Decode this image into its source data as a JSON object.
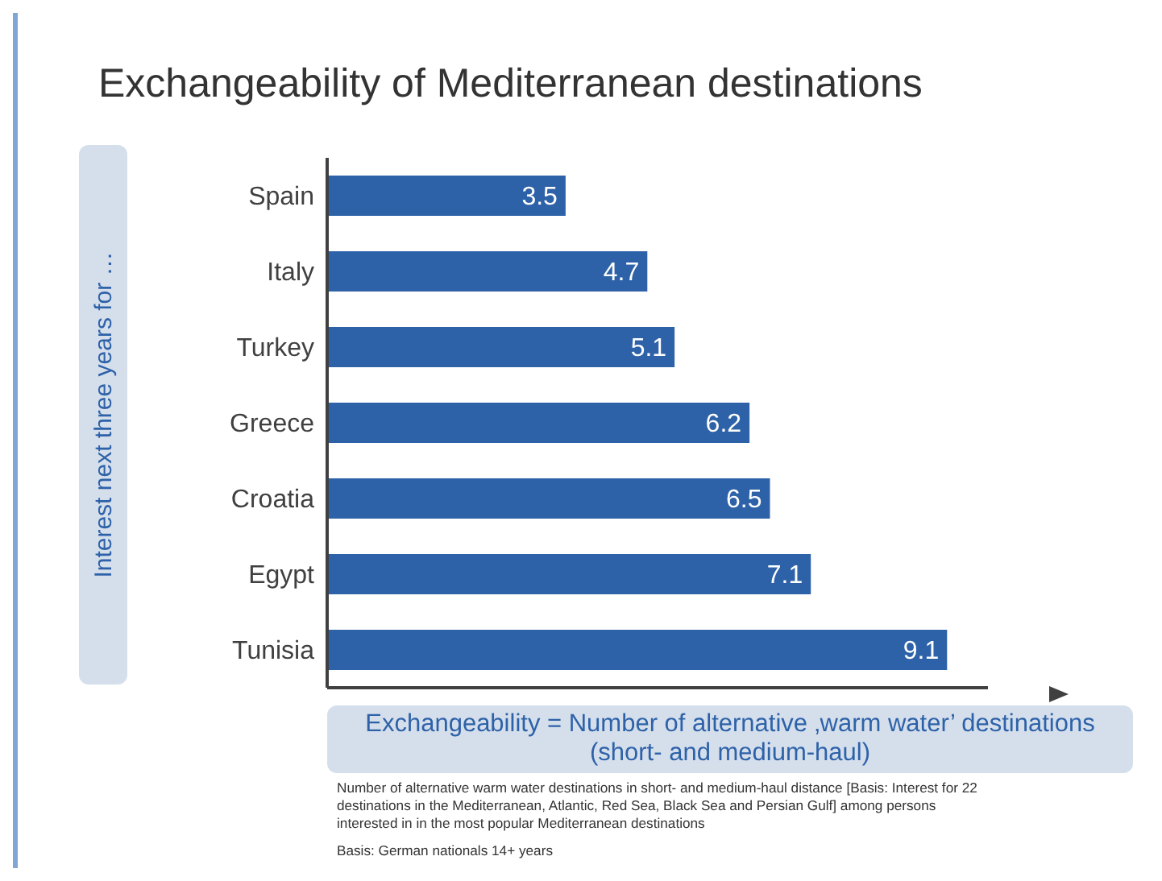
{
  "chart_data": {
    "type": "bar",
    "orientation": "horizontal",
    "title": "Exchangeability of Mediterranean destinations",
    "ylabel": "Interest next three years for …",
    "xlabel": "Exchangeability = Number of alternative ‚warm water’ destinations (short- and medium-haul)",
    "categories": [
      "Spain",
      "Italy",
      "Turkey",
      "Greece",
      "Croatia",
      "Egypt",
      "Tunisia"
    ],
    "values": [
      3.5,
      4.7,
      5.1,
      6.2,
      6.5,
      7.1,
      9.1
    ],
    "color": "#2e62a8",
    "data_labels": true,
    "xlim": [
      0,
      9.7
    ],
    "tick_labels": "y",
    "annotations": [
      "Number of alternative warm water destinations in short- and medium-haul distance [Basis: Interest for 22 destinations in the Mediterranean, Atlantic, Red Sea, Black Sea and Persian Gulf] among persons interested in in the most popular Mediterranean destinations",
      "Basis: German nationals 14+ years"
    ]
  }
}
